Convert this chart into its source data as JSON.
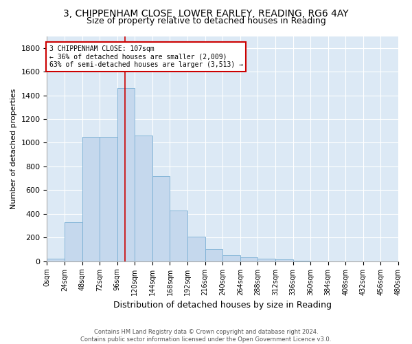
{
  "title1": "3, CHIPPENHAM CLOSE, LOWER EARLEY, READING, RG6 4AY",
  "title2": "Size of property relative to detached houses in Reading",
  "xlabel": "Distribution of detached houses by size in Reading",
  "ylabel": "Number of detached properties",
  "bar_values": [
    20,
    330,
    1050,
    1050,
    1460,
    1060,
    720,
    430,
    210,
    100,
    50,
    35,
    20,
    15,
    5,
    0,
    0,
    0,
    0,
    0
  ],
  "bin_edges": [
    0,
    24,
    48,
    72,
    96,
    120,
    144,
    168,
    192,
    216,
    240,
    264,
    288,
    312,
    336,
    360,
    384,
    408,
    432,
    456,
    480
  ],
  "bar_color": "#c5d8ed",
  "bar_edge_color": "#7aafd4",
  "property_size": 107,
  "red_line_color": "#cc0000",
  "annotation_text": "3 CHIPPENHAM CLOSE: 107sqm\n← 36% of detached houses are smaller (2,009)\n63% of semi-detached houses are larger (3,513) →",
  "annotation_box_color": "#ffffff",
  "annotation_box_edge_color": "#cc0000",
  "ylim": [
    0,
    1900
  ],
  "yticks": [
    0,
    200,
    400,
    600,
    800,
    1000,
    1200,
    1400,
    1600,
    1800
  ],
  "xtick_labels": [
    "0sqm",
    "24sqm",
    "48sqm",
    "72sqm",
    "96sqm",
    "120sqm",
    "144sqm",
    "168sqm",
    "192sqm",
    "216sqm",
    "240sqm",
    "264sqm",
    "288sqm",
    "312sqm",
    "336sqm",
    "360sqm",
    "384sqm",
    "408sqm",
    "432sqm",
    "456sqm",
    "480sqm"
  ],
  "plot_bg_color": "#dce9f5",
  "footer_text": "Contains HM Land Registry data © Crown copyright and database right 2024.\nContains public sector information licensed under the Open Government Licence v3.0.",
  "title1_fontsize": 10,
  "title2_fontsize": 9,
  "ylabel_fontsize": 8,
  "xlabel_fontsize": 9,
  "ytick_fontsize": 8,
  "xtick_fontsize": 7,
  "footer_fontsize": 6
}
